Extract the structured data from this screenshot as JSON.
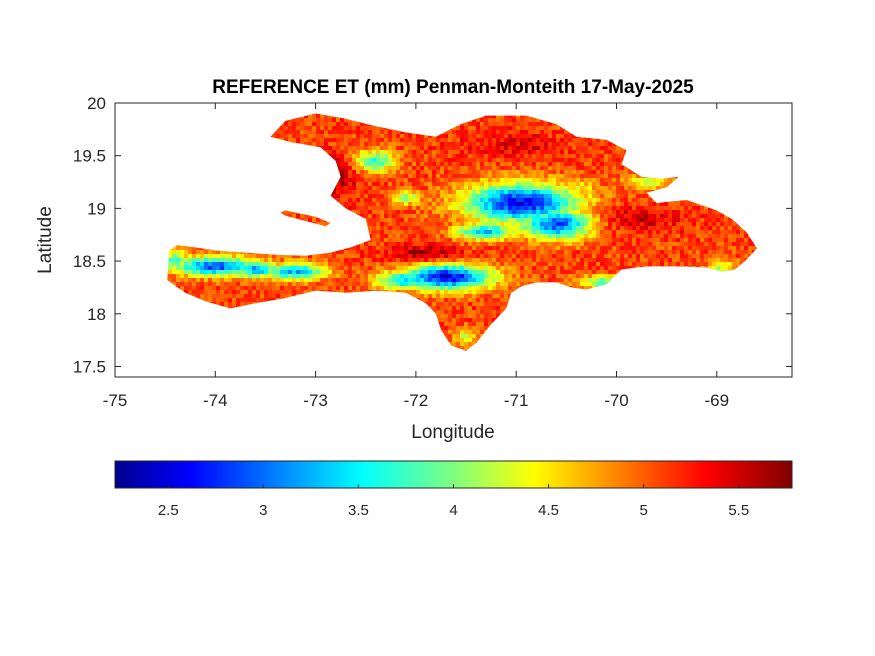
{
  "chart_data": {
    "type": "heatmap",
    "title": "REFERENCE ET (mm) Penman-Monteith 17-May-2025",
    "xlabel": "Longitude",
    "ylabel": "Latitude",
    "xlim": [
      -75,
      -68.25
    ],
    "ylim": [
      17.4,
      20
    ],
    "x_ticks": [
      -75,
      -74,
      -73,
      -72,
      -71,
      -70,
      -69
    ],
    "x_tick_labels": [
      "-75",
      "-74",
      "-73",
      "-72",
      "-71",
      "-70",
      "-69"
    ],
    "y_ticks": [
      17.5,
      18,
      18.5,
      19,
      19.5,
      20
    ],
    "y_tick_labels": [
      "17.5",
      "18",
      "18.5",
      "19",
      "19.5",
      "20"
    ],
    "colorbar": {
      "colormap": "jet",
      "range": [
        2.22,
        5.78
      ],
      "ticks": [
        2.5,
        3,
        3.5,
        4,
        4.5,
        5,
        5.5
      ],
      "tick_labels": [
        "2.5",
        "3",
        "3.5",
        "4",
        "4.5",
        "5",
        "5.5"
      ],
      "placement": "below"
    },
    "field_summary": {
      "region": "Hispaniola",
      "lowest_values_approx": 2.5,
      "highest_values_approx": 5.7,
      "low_zones": [
        {
          "lon": -70.95,
          "lat": 19.05,
          "value": 2.6
        },
        {
          "lon": -70.6,
          "lat": 18.85,
          "value": 2.9
        },
        {
          "lon": -71.7,
          "lat": 18.35,
          "value": 2.6
        },
        {
          "lon": -74.0,
          "lat": 18.45,
          "value": 2.9
        },
        {
          "lon": -73.2,
          "lat": 18.4,
          "value": 3.3
        },
        {
          "lon": -71.3,
          "lat": 18.78,
          "value": 3.4
        },
        {
          "lon": -72.4,
          "lat": 19.45,
          "value": 3.7
        }
      ],
      "high_zones": [
        {
          "lon": -71.9,
          "lat": 18.55,
          "value": 5.7
        },
        {
          "lon": -72.8,
          "lat": 19.3,
          "value": 5.6
        },
        {
          "lon": -69.8,
          "lat": 18.9,
          "value": 5.5
        }
      ]
    }
  }
}
